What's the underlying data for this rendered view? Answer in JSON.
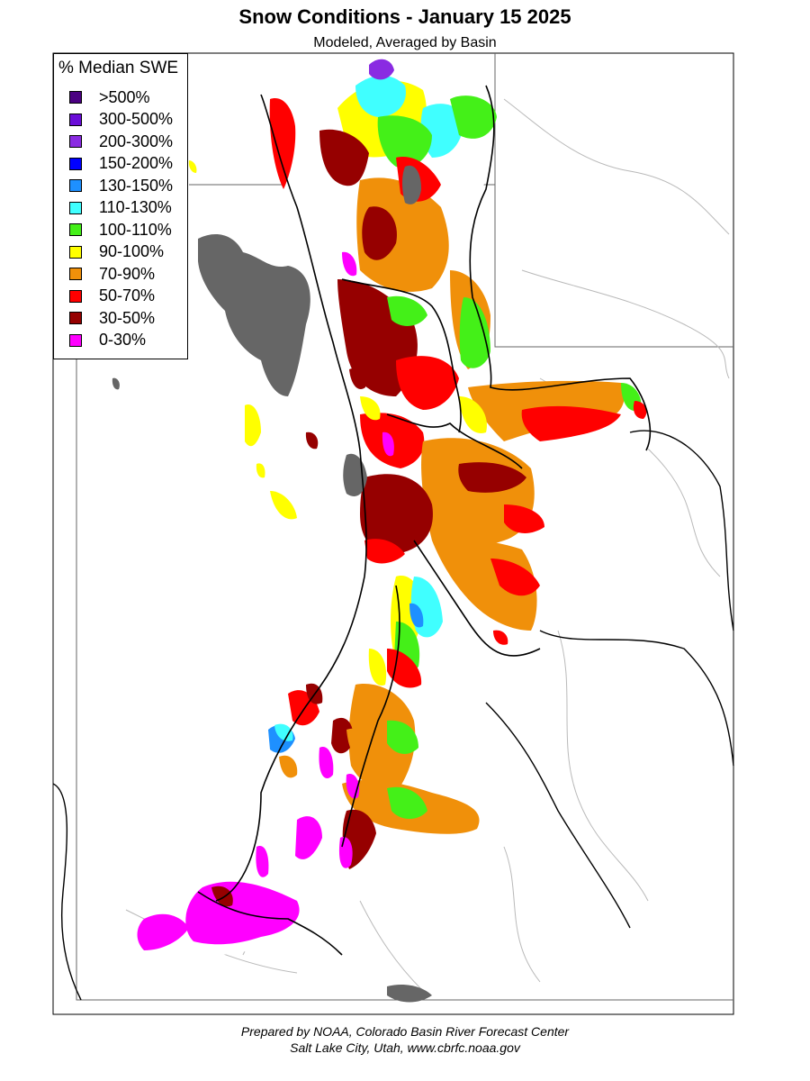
{
  "title": "Snow Conditions - January 15 2025",
  "subtitle": "Modeled, Averaged by Basin",
  "legend": {
    "title": "% Median SWE",
    "items": [
      {
        "label": ">500%",
        "color": "#4b0082"
      },
      {
        "label": "300-500%",
        "color": "#6a0dd8"
      },
      {
        "label": "200-300%",
        "color": "#8a2be2"
      },
      {
        "label": "150-200%",
        "color": "#0000ff"
      },
      {
        "label": "130-150%",
        "color": "#1e90ff"
      },
      {
        "label": "110-130%",
        "color": "#40ffff"
      },
      {
        "label": "100-110%",
        "color": "#44f018"
      },
      {
        "label": "90-100%",
        "color": "#ffff00"
      },
      {
        "label": "70-90%",
        "color": "#f0900a"
      },
      {
        "label": "50-70%",
        "color": "#ff0000"
      },
      {
        "label": "30-50%",
        "color": "#960000"
      },
      {
        "label": "0-30%",
        "color": "#ff00ff"
      }
    ]
  },
  "lake_color": "#666666",
  "footer": {
    "line1": "Prepared by NOAA, Colorado Basin River Forecast Center",
    "line2": "Salt Lake City, Utah, www.cbrfc.noaa.gov"
  }
}
